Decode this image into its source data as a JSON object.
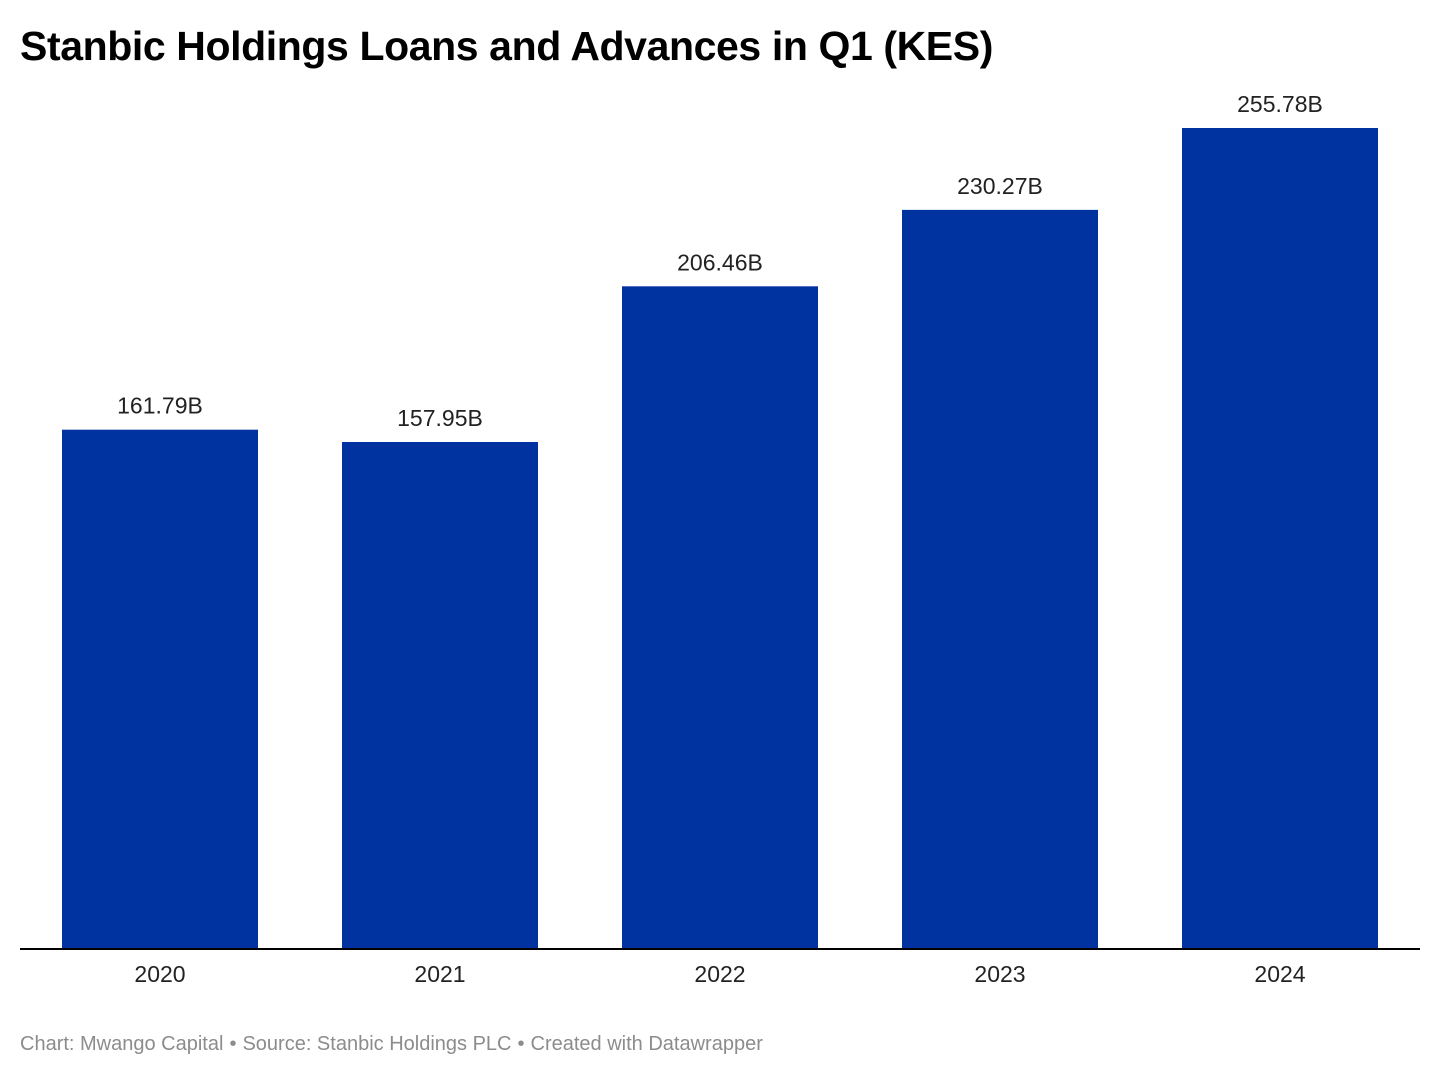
{
  "chart_data": {
    "type": "bar",
    "title": "Stanbic Holdings Loans and Advances in Q1 (KES)",
    "categories": [
      "2020",
      "2021",
      "2022",
      "2023",
      "2024"
    ],
    "values": [
      161.79,
      157.95,
      206.46,
      230.27,
      255.78
    ],
    "value_labels": [
      "161.79B",
      "157.95B",
      "206.46B",
      "230.27B",
      "255.78B"
    ],
    "unit": "B",
    "ylim": [
      0,
      255.78
    ],
    "grid": false,
    "legend": "none",
    "bar_color": "#0033a0",
    "axis_color": "#000000"
  },
  "footer": {
    "chart_credit": "Chart: Mwango Capital",
    "source": "Source: Stanbic Holdings PLC",
    "created_with": "Created with Datawrapper",
    "separator": "•"
  }
}
